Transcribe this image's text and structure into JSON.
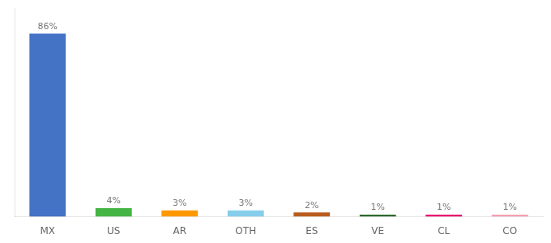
{
  "chart_data": {
    "type": "bar",
    "categories": [
      "MX",
      "US",
      "AR",
      "OTH",
      "ES",
      "VE",
      "CL",
      "CO"
    ],
    "values": [
      86,
      4,
      3,
      3,
      2,
      1,
      1,
      1
    ],
    "value_labels": [
      "86%",
      "4%",
      "3%",
      "3%",
      "2%",
      "1%",
      "1%",
      "1%"
    ],
    "colors": [
      "#4472c4",
      "#44b444",
      "#ff9900",
      "#87ceeb",
      "#b85c1e",
      "#2d6a2d",
      "#e8006e",
      "#f4a0b0"
    ],
    "ylim": [
      0,
      98
    ],
    "grid": false,
    "data_labels": true,
    "tick_labels": "x"
  }
}
